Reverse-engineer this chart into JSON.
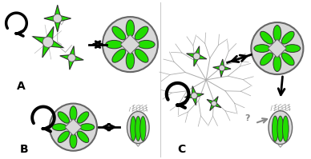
{
  "bg_color": "#ffffff",
  "green": "#22dd00",
  "gray": "#c0c0c0",
  "light_gray": "#d8d8d8",
  "outline": "#444444",
  "dark_gray": "#888888",
  "black": "#000000",
  "label_A": "A",
  "label_B": "B",
  "label_C": "C",
  "fig_width": 3.88,
  "fig_height": 1.99
}
